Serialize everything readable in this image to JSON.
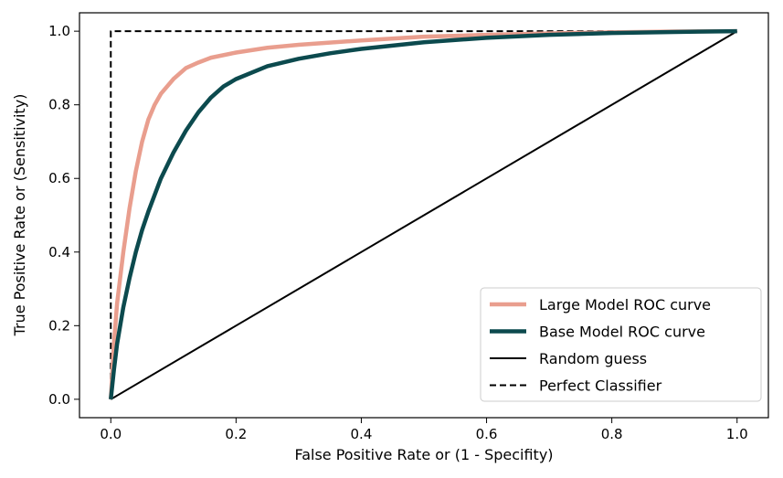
{
  "chart_data": {
    "type": "line",
    "title": "",
    "xlabel": "False Positive Rate or (1 - Specifity)",
    "ylabel": "True Positive Rate or (Sensitivity)",
    "xlim": [
      -0.05,
      1.05
    ],
    "ylim": [
      -0.05,
      1.05
    ],
    "x_ticks": [
      0.0,
      0.2,
      0.4,
      0.6,
      0.8,
      1.0
    ],
    "y_ticks": [
      0.0,
      0.2,
      0.4,
      0.6,
      0.8,
      1.0
    ],
    "x_tick_labels": [
      "0.0",
      "0.2",
      "0.4",
      "0.6",
      "0.8",
      "1.0"
    ],
    "y_tick_labels": [
      "0.0",
      "0.2",
      "0.4",
      "0.6",
      "0.8",
      "1.0"
    ],
    "grid": false,
    "legend_position": "lower-right",
    "series": [
      {
        "name": "Large Model ROC curve",
        "color": "#e99e8e",
        "style": "solid",
        "points": [
          [
            0,
            0
          ],
          [
            0.005,
            0.15
          ],
          [
            0.01,
            0.26
          ],
          [
            0.02,
            0.4
          ],
          [
            0.03,
            0.52
          ],
          [
            0.04,
            0.62
          ],
          [
            0.05,
            0.7
          ],
          [
            0.06,
            0.76
          ],
          [
            0.07,
            0.8
          ],
          [
            0.08,
            0.83
          ],
          [
            0.1,
            0.87
          ],
          [
            0.12,
            0.9
          ],
          [
            0.14,
            0.915
          ],
          [
            0.16,
            0.928
          ],
          [
            0.2,
            0.942
          ],
          [
            0.25,
            0.955
          ],
          [
            0.3,
            0.963
          ],
          [
            0.4,
            0.975
          ],
          [
            0.5,
            0.985
          ],
          [
            0.6,
            0.99
          ],
          [
            0.7,
            0.994
          ],
          [
            0.8,
            0.997
          ],
          [
            0.9,
            0.999
          ],
          [
            1.0,
            1.0
          ]
        ]
      },
      {
        "name": "Base Model ROC curve",
        "color": "#0c4a4e",
        "style": "solid",
        "points": [
          [
            0,
            0
          ],
          [
            0.005,
            0.08
          ],
          [
            0.01,
            0.15
          ],
          [
            0.02,
            0.25
          ],
          [
            0.03,
            0.33
          ],
          [
            0.04,
            0.4
          ],
          [
            0.05,
            0.46
          ],
          [
            0.06,
            0.51
          ],
          [
            0.08,
            0.6
          ],
          [
            0.1,
            0.67
          ],
          [
            0.12,
            0.73
          ],
          [
            0.14,
            0.78
          ],
          [
            0.16,
            0.82
          ],
          [
            0.18,
            0.85
          ],
          [
            0.2,
            0.87
          ],
          [
            0.25,
            0.905
          ],
          [
            0.3,
            0.925
          ],
          [
            0.35,
            0.94
          ],
          [
            0.4,
            0.952
          ],
          [
            0.5,
            0.97
          ],
          [
            0.6,
            0.982
          ],
          [
            0.7,
            0.99
          ],
          [
            0.8,
            0.995
          ],
          [
            0.9,
            0.998
          ],
          [
            1.0,
            1.0
          ]
        ]
      },
      {
        "name": "Random guess",
        "color": "#000000",
        "style": "solid",
        "points": [
          [
            0,
            0
          ],
          [
            1,
            1
          ]
        ]
      },
      {
        "name": "Perfect Classifier",
        "color": "#000000",
        "style": "dashed",
        "points": [
          [
            0,
            0
          ],
          [
            0,
            1
          ],
          [
            1,
            1
          ]
        ]
      }
    ]
  }
}
